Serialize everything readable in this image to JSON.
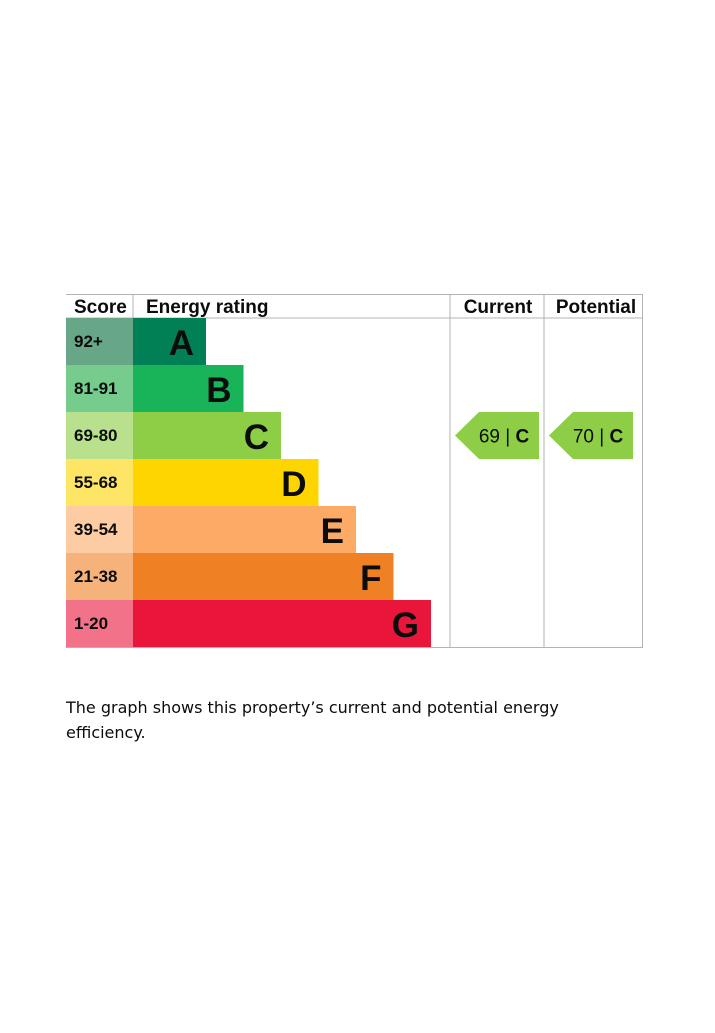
{
  "caption": "The graph shows this property’s current and potential energy efficiency.",
  "chart_data": {
    "type": "bar",
    "headers": {
      "score": "Score",
      "rating": "Energy rating",
      "current": "Current",
      "potential": "Potential"
    },
    "bands": [
      {
        "letter": "A",
        "score": "92+",
        "color": "#008054",
        "score_bg": "#67a687"
      },
      {
        "letter": "B",
        "score": "81-91",
        "color": "#19b459",
        "score_bg": "#75cc8c"
      },
      {
        "letter": "C",
        "score": "69-80",
        "color": "#8dce46",
        "score_bg": "#b9e18d"
      },
      {
        "letter": "D",
        "score": "55-68",
        "color": "#ffd500",
        "score_bg": "#ffe566"
      },
      {
        "letter": "E",
        "score": "39-54",
        "color": "#fcaa65",
        "score_bg": "#fdcca2"
      },
      {
        "letter": "F",
        "score": "21-38",
        "color": "#ef8023",
        "score_bg": "#f5b27b"
      },
      {
        "letter": "G",
        "score": "1-20",
        "color": "#e9153b",
        "score_bg": "#f27389"
      }
    ],
    "current": {
      "value": 69,
      "letter": "C",
      "color": "#8dce46"
    },
    "potential": {
      "value": 70,
      "letter": "C",
      "color": "#8dce46"
    },
    "separator": "|"
  }
}
